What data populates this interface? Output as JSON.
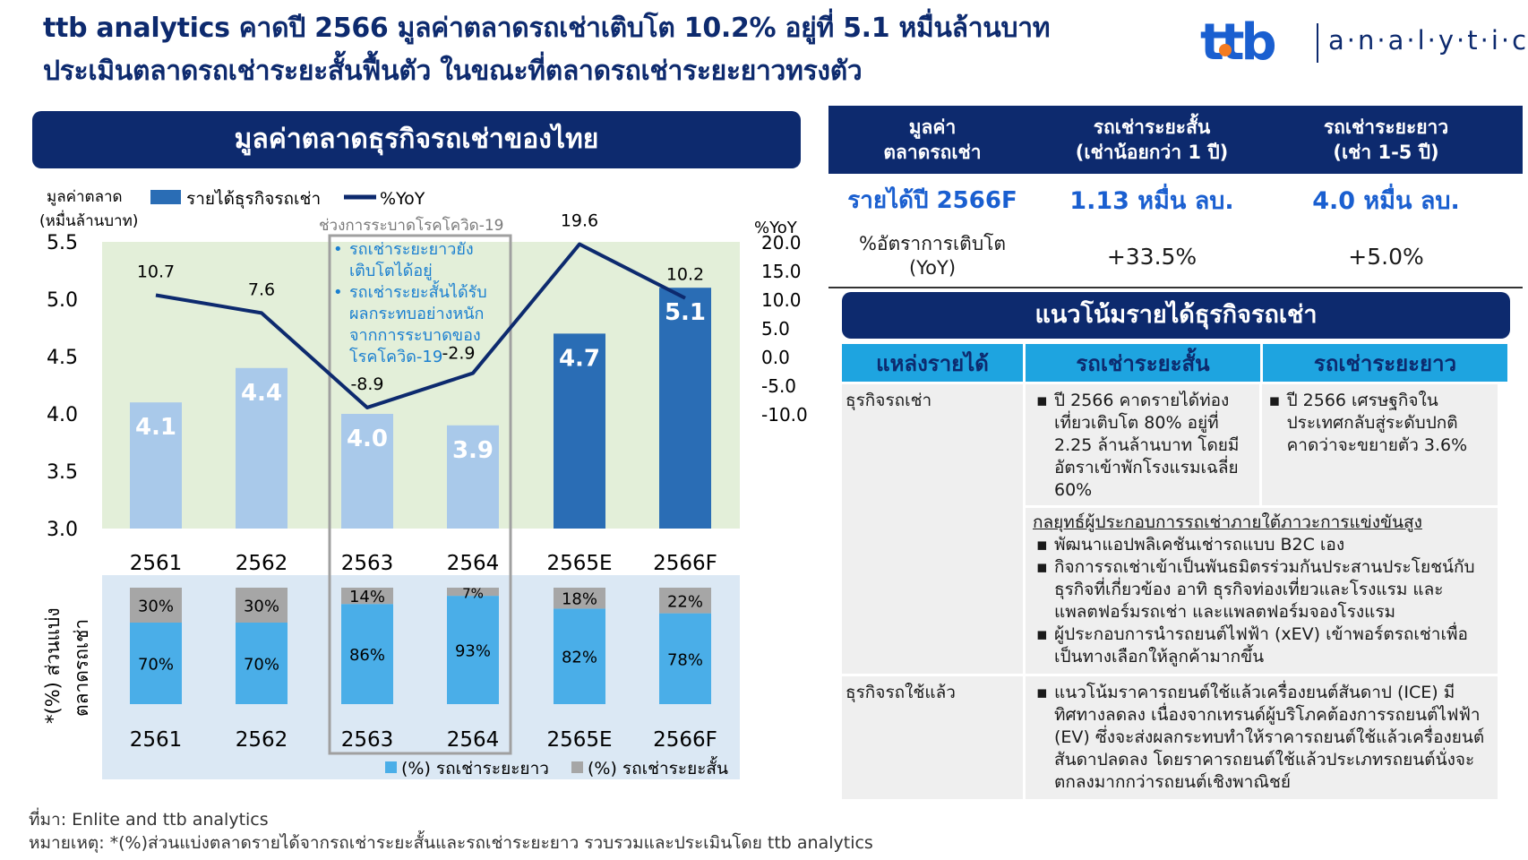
{
  "header": {
    "title_line1": "ttb analytics คาดปี 2566 มูลค่าตลาดรถเช่าเติบโต 10.2% อยู่ที่ 5.1 หมื่นล้านบาท",
    "title_line2": "ประเมินตลาดรถเช่าระยะสั้นฟื้นตัว ในขณะที่ตลาดรถเช่าระยะยาวทรงตัว",
    "logo_brand": "ttb",
    "logo_text": "a·n·a·l·y·t·i·c·s"
  },
  "colors": {
    "navy": "#0d2a6e",
    "bar_light": "#a9c9ea",
    "bar_dark": "#2a6db5",
    "long_term": "#4aaee8",
    "short_term": "#a6a6a6",
    "bg_green": "#e3efd9",
    "bg_blue": "#dbe8f4",
    "header_cyan": "#1ea4e0"
  },
  "left_panel": {
    "banner": "มูลค่าตลาดธุรกิจรถเช่าของไทย"
  },
  "chart_data": [
    {
      "type": "bar+line",
      "title": "มูลค่าตลาดธุรกิจรถเช่าของไทย",
      "ylabel_line1": "มูลค่าตลาด",
      "ylabel_line2": "(หมื่นล้านบาท)",
      "y2label": "%YoY",
      "legend_bar": "รายได้ธุรกิจรถเช่า",
      "legend_line": "%YoY",
      "categories": [
        "2561",
        "2562",
        "2563",
        "2564",
        "2565E",
        "2566F"
      ],
      "revenue": [
        4.1,
        4.4,
        4.0,
        3.9,
        4.7,
        5.1
      ],
      "revenue_labels": [
        "4.1",
        "4.4",
        "4.0",
        "3.9",
        "4.7",
        "5.1"
      ],
      "yoy": [
        10.7,
        7.6,
        -8.9,
        -2.9,
        19.6,
        10.2
      ],
      "yoy_labels": [
        "10.7",
        "7.6",
        "-8.9",
        "-2.9",
        "19.6",
        "10.2"
      ],
      "ylim": [
        3.0,
        5.5
      ],
      "yticks": [
        "5.5",
        "5.0",
        "4.5",
        "4.0",
        "3.5",
        "3.0"
      ],
      "y2lim": [
        -10.0,
        20.0
      ],
      "y2ticks": [
        "20.0",
        "15.0",
        "10.0",
        "5.0",
        "0.0",
        "-5.0",
        "-10.0"
      ],
      "covid_label": "ช่วงการระบาดโรคโควิด-19",
      "covid_notes": [
        "รถเช่าระยะยาวยัง",
        "เติบโตได้อยู่",
        "รถเช่าระยะสั้นได้รับ",
        "ผลกระทบอย่างหนัก",
        "จากการระบาดของ",
        "โรคโควิด-19"
      ]
    },
    {
      "type": "stacked_bar",
      "ylabel_line1": "*(%) ส่วนแบ่ง",
      "ylabel_line2": "ตลาดรถเช่า",
      "categories": [
        "2561",
        "2562",
        "2563",
        "2564",
        "2565E",
        "2566F"
      ],
      "series": [
        {
          "name": "(%) รถเช่าระยะยาว",
          "values": [
            70,
            70,
            86,
            93,
            82,
            78
          ],
          "labels": [
            "70%",
            "70%",
            "86%",
            "93%",
            "82%",
            "78%"
          ]
        },
        {
          "name": "(%) รถเช่าระยะสั้น",
          "values": [
            30,
            30,
            14,
            7,
            18,
            22
          ],
          "labels": [
            "30%",
            "30%",
            "14%",
            "7%",
            "18%",
            "22%"
          ]
        }
      ]
    }
  ],
  "summary": {
    "headers": [
      "มูลค่า\nตลาดรถเช่า",
      "รถเช่าระยะสั้น\n(เช่าน้อยกว่า 1 ปี)",
      "รถเช่าระยะยาว\n(เช่า 1-5 ปี)"
    ],
    "revenue_row": {
      "label": "รายได้ปี 2566F",
      "short": "1.13 หมื่น ลบ.",
      "long": "4.0 หมื่น ลบ."
    },
    "growth_row": {
      "label": "%อัตราการเติบโต\n(YoY)",
      "short": "+33.5%",
      "long": "+5.0%"
    }
  },
  "trend": {
    "banner": "แนวโน้มรายได้ธุรกิจรถเช่า",
    "headers": [
      "แหล่งรายได้",
      "รถเช่าระยะสั้น",
      "รถเช่าระยะยาว"
    ],
    "rental_label": "ธุรกิจรถเช่า",
    "rental_short": "ปี 2566 คาดรายได้ท่องเที่ยวเติบโต 80% อยู่ที่ 2.25 ล้านล้านบาท โดยมีอัตราเข้าพักโรงแรมเฉลี่ย 60%",
    "rental_long": "ปี 2566 เศรษฐกิจในประเทศกลับสู่ระดับปกติ คาดว่าจะขยายตัว 3.6%",
    "strategy_title": "กลยุทธ์ผู้ประกอบการรถเช่าภายใต้ภาวะการแข่งขันสูง",
    "strategy_items": [
      "พัฒนาแอปพลิเคชันเช่ารถแบบ B2C เอง",
      "กิจการรถเช่าเข้าเป็นพันธมิตรร่วมกันประสานประโยชน์กับธุรกิจที่เกี่ยวข้อง อาทิ ธุรกิจท่องเที่ยวและโรงแรม และแพลตฟอร์มรถเช่า และแพลตฟอร์มจองโรงแรม",
      "ผู้ประกอบการนำรถยนต์ไฟฟ้า (xEV) เข้าพอร์ตรถเช่าเพื่อเป็นทางเลือกให้ลูกค้ามากขึ้น"
    ],
    "used_label": "ธุรกิจรถใช้แล้ว",
    "used_text": "แนวโน้มราคารถยนต์ใช้แล้วเครื่องยนต์สันดาป (ICE) มีทิศทางลดลง เนื่องจากเทรนด์ผู้บริโภคต้องการรถยนต์ไฟฟ้า (EV) ซึ่งจะส่งผลกระทบทำให้ราคารถยนต์ใช้แล้วเครื่องยนต์สันดาปลดลง โดยราคารถยนต์ใช้แล้วประเภทรถยนต์นั่งจะตกลงมากกว่ารถยนต์เชิงพาณิชย์"
  },
  "footer": {
    "source": "ที่มา: Enlite and ttb analytics",
    "note": "หมายเหตุ: *(%)ส่วนแบ่งตลาดรายได้จากรถเช่าระยะสั้นและรถเช่าระยะยาว รวบรวมและประเมินโดย ttb analytics"
  }
}
